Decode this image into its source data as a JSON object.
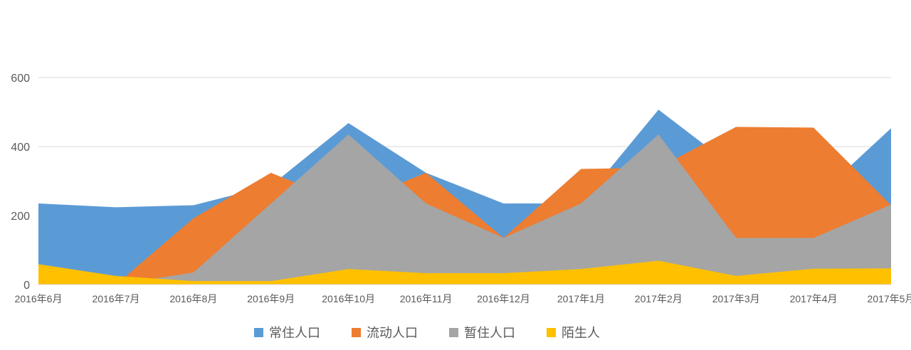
{
  "chart_data": {
    "type": "area",
    "title": "",
    "xlabel": "",
    "ylabel": "",
    "ylim": [
      0,
      600
    ],
    "yticks": [
      0,
      200,
      400,
      600
    ],
    "grid": true,
    "legend_position": "bottom",
    "categories": [
      "2016年6月",
      "2016年7月",
      "2016年8月",
      "2016年9月",
      "2016年10月",
      "2016年11月",
      "2016年12月",
      "2017年1月",
      "2017年2月",
      "2017年3月",
      "2017年4月",
      "2017年5月"
    ],
    "series": [
      {
        "name": "常住人口",
        "color": "#5B9BD5",
        "values": [
          235,
          224,
          230,
          287,
          468,
          324,
          235,
          235,
          507,
          335,
          245,
          453
        ]
      },
      {
        "name": "流动人口",
        "color": "#ED7D31",
        "values": [
          0,
          0,
          192,
          324,
          232,
          324,
          135,
          335,
          339,
          457,
          455,
          230
        ]
      },
      {
        "name": "暂住人口",
        "color": "#A5A5A5",
        "values": [
          0,
          0,
          35,
          235,
          435,
          235,
          135,
          235,
          435,
          135,
          135,
          232
        ]
      },
      {
        "name": "陌生人",
        "color": "#FFC000",
        "values": [
          59,
          25,
          10,
          10,
          45,
          33,
          33,
          45,
          69,
          25,
          46,
          47
        ]
      }
    ]
  }
}
